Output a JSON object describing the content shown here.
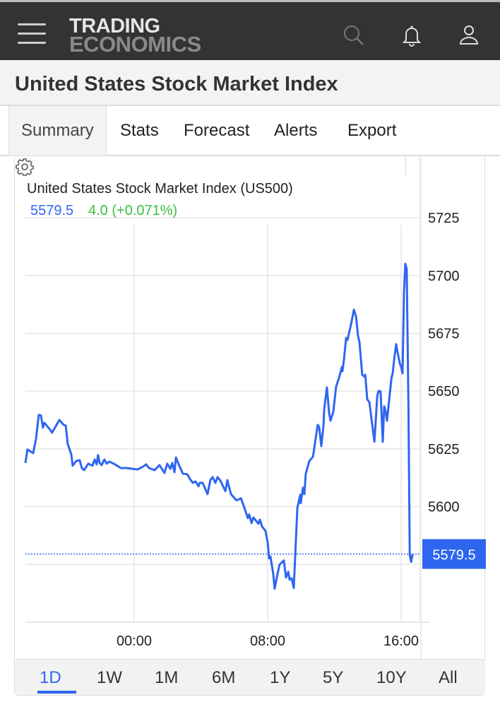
{
  "header": {
    "logo_line1": "TRADING",
    "logo_line2": "ECONOMICS",
    "icons": [
      "menu-icon",
      "search-icon",
      "bell-icon",
      "user-icon"
    ]
  },
  "page_title": "United States Stock Market Index",
  "tabs": [
    {
      "label": "Summary",
      "active": true
    },
    {
      "label": "Stats"
    },
    {
      "label": "Forecast"
    },
    {
      "label": "Alerts"
    },
    {
      "label": "Export"
    }
  ],
  "quote": {
    "price": "5579.5",
    "change": "4.0 (+0.071%)"
  },
  "ranges": [
    {
      "label": "1D",
      "active": true
    },
    {
      "label": "1W"
    },
    {
      "label": "1M"
    },
    {
      "label": "6M"
    },
    {
      "label": "1Y"
    },
    {
      "label": "5Y"
    },
    {
      "label": "10Y"
    },
    {
      "label": "All"
    }
  ],
  "colors": {
    "line": "#2f66f0",
    "change": "#3cbf3c",
    "header": "#333333"
  },
  "chart_data": {
    "type": "line",
    "title": "United States Stock Market Index (US500)",
    "grid": true,
    "ylim": [
      5550,
      5749.5
    ],
    "xlim": [
      "17:29",
      "17:11"
    ],
    "y_ticks": [
      "5600",
      "5625",
      "5650",
      "5675",
      "5700",
      "5725"
    ],
    "x_ticks": [
      "00:00",
      "08:00",
      "16:00"
    ],
    "last_value_label": "5579.5",
    "last_value": 5579.5,
    "x": [
      "17:29",
      "17:36",
      "17:57",
      "18:07",
      "18:17",
      "18:25",
      "18:32",
      "18:37",
      "18:58",
      "19:05",
      "19:31",
      "19:46",
      "19:54",
      "20:01",
      "20:14",
      "20:19",
      "20:32",
      "20:44",
      "20:52",
      "21:00",
      "21:15",
      "21:30",
      "21:38",
      "21:45",
      "21:50",
      "21:56",
      "22:03",
      "22:13",
      "22:21",
      "22:31",
      "22:51",
      "23:12",
      "23:32",
      "23:52",
      "00:13",
      "00:33",
      "00:43",
      "00:53",
      "01:14",
      "01:31",
      "01:49",
      "01:59",
      "02:10",
      "02:17",
      "02:25",
      "02:30",
      "02:40",
      "02:55",
      "03:11",
      "03:21",
      "03:31",
      "03:41",
      "03:51",
      "03:56",
      "04:06",
      "04:24",
      "04:34",
      "04:42",
      "04:52",
      "05:00",
      "05:10",
      "05:28",
      "05:35",
      "05:48",
      "06:08",
      "06:24",
      "06:36",
      "06:49",
      "06:54",
      "07:02",
      "07:09",
      "07:27",
      "07:32",
      "07:40",
      "07:52",
      "08:00",
      "08:05",
      "08:10",
      "08:20",
      "08:25",
      "08:36",
      "08:43",
      "08:58",
      "09:06",
      "09:14",
      "09:19",
      "09:26",
      "09:34",
      "09:42",
      "09:47",
      "09:57",
      "09:59",
      "10:07",
      "10:12",
      "10:17",
      "10:30",
      "10:43",
      "10:50",
      "11:00",
      "11:05",
      "11:13",
      "11:21",
      "11:23",
      "11:33",
      "11:41",
      "11:46",
      "11:56",
      "12:06",
      "12:17",
      "12:27",
      "12:29",
      "12:34",
      "12:42",
      "12:47",
      "13:00",
      "13:10",
      "13:18",
      "13:25",
      "13:30",
      "13:40",
      "13:48",
      "13:51",
      "13:58",
      "14:06",
      "14:13",
      "14:24",
      "14:34",
      "14:39",
      "14:46",
      "14:54",
      "14:59",
      "15:04",
      "15:09",
      "15:25",
      "15:30",
      "15:35",
      "15:42",
      "15:47",
      "15:55",
      "16:00",
      "16:05",
      "16:10",
      "16:15",
      "16:20",
      "16:26",
      "16:31",
      "16:36",
      "16:41"
    ],
    "y": [
      5618.9,
      5624.7,
      5623.2,
      5629.3,
      5639.7,
      5639.4,
      5634.2,
      5636.3,
      5633.3,
      5632.0,
      5637.5,
      5635.4,
      5635.1,
      5627.1,
      5622.6,
      5617.7,
      5619.8,
      5620.1,
      5616.7,
      5615.8,
      5618.6,
      5617.7,
      5620.4,
      5618.3,
      5622.3,
      5618.9,
      5618.0,
      5620.4,
      5618.6,
      5619.5,
      5618.3,
      5616.7,
      5616.7,
      5616.4,
      5616.1,
      5617.4,
      5618.3,
      5616.7,
      5615.8,
      5618.0,
      5614.6,
      5618.6,
      5616.4,
      5618.9,
      5614.9,
      5621.3,
      5618.3,
      5614.3,
      5614.0,
      5611.9,
      5610.3,
      5610.9,
      5608.8,
      5610.3,
      5610.3,
      5605.4,
      5611.5,
      5612.8,
      5610.3,
      5612.8,
      5611.2,
      5606.7,
      5611.5,
      5605.4,
      5602.7,
      5603.6,
      5599.6,
      5595.0,
      5596.6,
      5592.9,
      5595.3,
      5592.6,
      5594.4,
      5591.4,
      5589.5,
      5584.6,
      5577.6,
      5578.5,
      5570.9,
      5564.5,
      5571.2,
      5574.9,
      5576.7,
      5569.3,
      5571.8,
      5568.4,
      5569.0,
      5564.8,
      5586.8,
      5599.6,
      5605.1,
      5601.5,
      5608.2,
      5605.4,
      5614.3,
      5619.8,
      5621.6,
      5627.5,
      5635.4,
      5634.5,
      5626.2,
      5635.7,
      5642.1,
      5651.6,
      5640.6,
      5637.2,
      5640.9,
      5651.9,
      5655.9,
      5660.5,
      5658.6,
      5663.2,
      5673.0,
      5672.1,
      5679.1,
      5685.2,
      5682.2,
      5673.9,
      5671.2,
      5657.1,
      5656.2,
      5657.1,
      5646.4,
      5645.2,
      5638.2,
      5628.1,
      5647.9,
      5650.1,
      5649.8,
      5628.1,
      5643.4,
      5641.2,
      5637.2,
      5655.6,
      5658.0,
      5663.8,
      5670.3,
      5666.9,
      5662.0,
      5660.5,
      5657.7,
      5692.3,
      5705.1,
      5703.0,
      5645.1,
      5579.1,
      5576.1,
      5579.5
    ]
  }
}
